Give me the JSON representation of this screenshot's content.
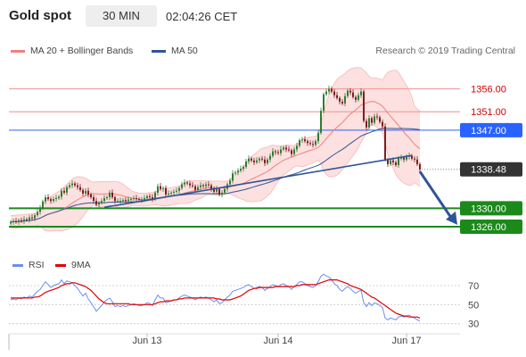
{
  "header": {
    "title": "Gold spot",
    "timeframe": "30 MIN",
    "time": "02:04:26 CET"
  },
  "legend": {
    "ma20_label": "MA 20 + Bollinger Bands",
    "ma50_label": "MA 50",
    "credit": "Research © 2019 Trading Central"
  },
  "rsi_legend": {
    "rsi_label": "RSI",
    "ma_label": "9MA"
  },
  "colors": {
    "up_candle": "#2e7d32",
    "down_candle": "#7a1f1f",
    "bollinger_fill": "#fde0e0",
    "ma20": "#f08080",
    "ma50": "#2f5597",
    "resistance": "#f4a0a0",
    "pivot": "#2962ff",
    "support": "#1b8a1b",
    "arrow": "#2f5597",
    "rsi": "#6b8ef0",
    "rsi_ma": "#e00000"
  },
  "chart_data": [
    {
      "type": "candlestick",
      "price_axis_range": [
        1322.5,
        1362.5
      ],
      "x_labels": [
        "Jun 13",
        "Jun 14",
        "Jun 17"
      ],
      "last_price": 1338.48,
      "levels": [
        {
          "value": 1356.0,
          "label": "1356.00",
          "kind": "resistance"
        },
        {
          "value": 1351.0,
          "label": "1351.00",
          "kind": "resistance"
        },
        {
          "value": 1347.0,
          "label": "1347.00",
          "kind": "pivot"
        },
        {
          "value": 1338.48,
          "label": "1338.48",
          "kind": "last"
        },
        {
          "value": 1330.0,
          "label": "1330.00",
          "kind": "support"
        },
        {
          "value": 1326.0,
          "label": "1326.00",
          "kind": "support"
        }
      ],
      "closes": [
        1327.0,
        1327.2,
        1327.0,
        1327.4,
        1327.2,
        1327.6,
        1327.5,
        1328.0,
        1327.8,
        1328.5,
        1329.2,
        1330.0,
        1331.5,
        1332.4,
        1332.0,
        1331.6,
        1332.0,
        1332.2,
        1332.5,
        1333.8,
        1333.4,
        1334.6,
        1335.0,
        1335.4,
        1335.0,
        1334.6,
        1334.0,
        1333.2,
        1333.8,
        1333.0,
        1332.4,
        1331.6,
        1330.8,
        1331.2,
        1331.6,
        1332.2,
        1332.4,
        1333.4,
        1332.4,
        1331.6,
        1331.6,
        1331.6,
        1331.8,
        1331.6,
        1331.9,
        1332.0,
        1332.2,
        1332.0,
        1331.8,
        1331.9,
        1332.2,
        1332.6,
        1332.4,
        1332.0,
        1333.4,
        1334.8,
        1334.2,
        1334.4,
        1333.0,
        1333.2,
        1333.4,
        1333.6,
        1333.8,
        1334.4,
        1335.2,
        1335.6,
        1335.4,
        1335.0,
        1334.8,
        1334.0,
        1334.6,
        1335.0,
        1334.8,
        1335.2,
        1335.0,
        1334.2,
        1333.6,
        1334.2,
        1333.0,
        1333.4,
        1334.2,
        1335.2,
        1336.0,
        1337.6,
        1337.8,
        1338.2,
        1338.6,
        1339.0,
        1340.2,
        1340.8,
        1340.4,
        1340.0,
        1340.4,
        1340.8,
        1340.6,
        1339.8,
        1340.6,
        1341.4,
        1342.4,
        1342.2,
        1342.0,
        1342.8,
        1343.2,
        1342.8,
        1342.6,
        1341.8,
        1342.8,
        1343.6,
        1344.8,
        1345.0,
        1344.6,
        1344.2,
        1344.0,
        1343.8,
        1344.6,
        1346.4,
        1351.2,
        1354.8,
        1355.4,
        1356.0,
        1355.4,
        1354.6,
        1354.0,
        1353.2,
        1352.8,
        1354.4,
        1355.6,
        1355.2,
        1354.2,
        1353.6,
        1354.6,
        1355.4,
        1349.0,
        1347.6,
        1349.6,
        1348.6,
        1350.0,
        1349.8,
        1348.8,
        1347.8,
        1340.6,
        1339.6,
        1340.4,
        1340.0,
        1339.4,
        1340.8,
        1341.0,
        1340.6,
        1341.2,
        1341.4,
        1340.8,
        1340.6,
        1339.6,
        1338.48
      ]
    },
    {
      "type": "line",
      "title": "RSI",
      "y_ticks": [
        30,
        50,
        70
      ],
      "ylim": [
        25,
        85
      ],
      "series": [
        {
          "name": "RSI",
          "values": [
            55,
            56,
            55,
            57,
            56,
            58,
            57,
            59,
            58,
            61,
            64,
            66,
            70,
            74,
            71,
            68,
            70,
            71,
            72,
            76,
            72,
            75,
            74,
            73,
            70,
            67,
            63,
            59,
            62,
            56,
            52,
            48,
            43,
            46,
            49,
            53,
            55,
            57,
            53,
            48,
            49,
            48,
            49,
            48,
            49,
            50,
            51,
            50,
            49,
            49,
            50,
            52,
            51,
            49,
            55,
            60,
            57,
            57,
            52,
            53,
            54,
            55,
            55,
            57,
            59,
            60,
            59,
            58,
            57,
            55,
            57,
            58,
            57,
            58,
            57,
            55,
            53,
            55,
            51,
            52,
            55,
            58,
            60,
            64,
            65,
            66,
            67,
            68,
            70,
            71,
            69,
            67,
            68,
            69,
            68,
            65,
            67,
            69,
            71,
            70,
            69,
            71,
            72,
            70,
            69,
            66,
            69,
            71,
            74,
            74,
            72,
            70,
            69,
            68,
            70,
            74,
            80,
            82,
            80,
            79,
            76,
            72,
            70,
            66,
            64,
            67,
            69,
            67,
            64,
            62,
            64,
            65,
            52,
            48,
            52,
            49,
            52,
            51,
            49,
            47,
            36,
            34,
            36,
            35,
            34,
            37,
            38,
            37,
            38,
            39,
            37,
            36,
            34,
            33
          ]
        },
        {
          "name": "9MA",
          "values": [
            57,
            57,
            57,
            57,
            57,
            57,
            57,
            57,
            57,
            58,
            58,
            59,
            61,
            63,
            64,
            65,
            66,
            67,
            68,
            70,
            71,
            72,
            72,
            73,
            73,
            72,
            71,
            70,
            69,
            67,
            65,
            62,
            59,
            56,
            54,
            52,
            51,
            51,
            51,
            51,
            51,
            51,
            51,
            51,
            51,
            50,
            50,
            50,
            50,
            50,
            50,
            50,
            50,
            50,
            51,
            52,
            53,
            53,
            54,
            54,
            54,
            55,
            55,
            56,
            56,
            57,
            57,
            57,
            57,
            57,
            57,
            57,
            57,
            57,
            57,
            57,
            57,
            56,
            56,
            55,
            55,
            55,
            55,
            56,
            57,
            58,
            59,
            61,
            63,
            65,
            66,
            67,
            67,
            68,
            68,
            68,
            68,
            68,
            68,
            69,
            69,
            69,
            69,
            69,
            69,
            69,
            69,
            70,
            70,
            71,
            71,
            71,
            71,
            71,
            71,
            72,
            73,
            74,
            75,
            76,
            76,
            76,
            76,
            75,
            74,
            73,
            72,
            70,
            69,
            68,
            67,
            66,
            64,
            62,
            60,
            58,
            57,
            55,
            53,
            51,
            49,
            47,
            45,
            43,
            41,
            40,
            39,
            38,
            38,
            37,
            37,
            37,
            37,
            36
          ]
        }
      ]
    }
  ]
}
